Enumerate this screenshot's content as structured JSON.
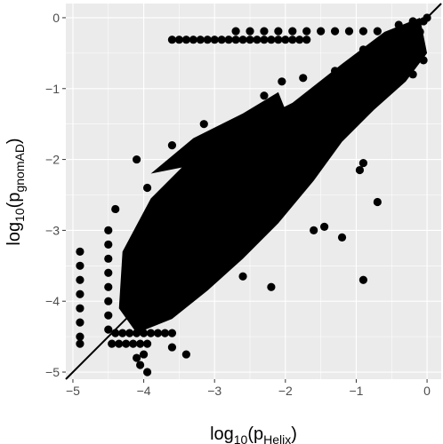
{
  "chart_data": {
    "type": "scatter",
    "title": "",
    "xlabel": {
      "base": "log",
      "base_sub": "10",
      "open": "(p",
      "sub": "Helix",
      "close": ")"
    },
    "ylabel": {
      "base": "log",
      "base_sub": "10",
      "open": "(p",
      "sub": "gnomAD",
      "close": ")"
    },
    "xlim": [
      -5.1,
      0.2
    ],
    "ylim": [
      -5.1,
      0.2
    ],
    "x_ticks": [
      -5,
      -4,
      -3,
      -2,
      -1,
      0
    ],
    "x_tick_labels": [
      "−5",
      "−4",
      "−3",
      "−2",
      "−1",
      "0"
    ],
    "y_ticks": [
      -5,
      -4,
      -3,
      -2,
      -1,
      0
    ],
    "y_tick_labels": [
      "−5",
      "−4",
      "−3",
      "−2",
      "−1",
      "0"
    ],
    "grid": true,
    "background": "#ebebeb",
    "point_color": "#000000",
    "reference_line": {
      "type": "identity",
      "slope": 1,
      "intercept": 0,
      "color": "#000000"
    },
    "series": [
      {
        "points": [
          [
            -4.9,
            -3.3
          ],
          [
            -4.9,
            -3.5
          ],
          [
            -4.9,
            -3.7
          ],
          [
            -4.9,
            -3.9
          ],
          [
            -4.9,
            -4.1
          ],
          [
            -4.9,
            -4.3
          ],
          [
            -4.9,
            -4.5
          ],
          [
            -4.9,
            -4.6
          ],
          [
            -4.5,
            -3.0
          ],
          [
            -4.5,
            -3.2
          ],
          [
            -4.5,
            -3.4
          ],
          [
            -4.5,
            -3.6
          ],
          [
            -4.5,
            -3.8
          ],
          [
            -4.5,
            -4.0
          ],
          [
            -4.5,
            -4.2
          ],
          [
            -4.5,
            -4.4
          ],
          [
            -4.45,
            -4.6
          ],
          [
            -4.35,
            -4.6
          ],
          [
            -4.25,
            -4.6
          ],
          [
            -4.15,
            -4.6
          ],
          [
            -4.05,
            -4.6
          ],
          [
            -3.95,
            -4.6
          ],
          [
            -4.4,
            -4.45
          ],
          [
            -4.3,
            -4.45
          ],
          [
            -4.2,
            -4.45
          ],
          [
            -4.1,
            -4.45
          ],
          [
            -4.0,
            -4.45
          ],
          [
            -3.9,
            -4.45
          ],
          [
            -3.8,
            -4.45
          ],
          [
            -3.7,
            -4.45
          ],
          [
            -3.6,
            -4.45
          ],
          [
            -4.1,
            -4.8
          ],
          [
            -4.05,
            -4.9
          ],
          [
            -3.95,
            -5.0
          ],
          [
            -4.0,
            -4.75
          ],
          [
            -3.6,
            -4.65
          ],
          [
            -3.4,
            -4.75
          ],
          [
            -4.1,
            -2.0
          ],
          [
            -3.6,
            -1.8
          ],
          [
            -4.4,
            -2.7
          ],
          [
            -3.95,
            -2.4
          ],
          [
            -3.15,
            -1.5
          ],
          [
            -2.3,
            -1.1
          ],
          [
            -2.05,
            -0.9
          ],
          [
            -1.75,
            -0.85
          ],
          [
            -1.3,
            -0.75
          ],
          [
            -0.9,
            -0.45
          ],
          [
            -0.7,
            -2.6
          ],
          [
            -1.45,
            -2.95
          ],
          [
            -1.6,
            -3.0
          ],
          [
            -1.2,
            -3.1
          ],
          [
            -0.9,
            -3.7
          ],
          [
            -2.2,
            -3.8
          ],
          [
            -2.6,
            -3.65
          ],
          [
            -0.9,
            -2.05
          ],
          [
            -0.95,
            -2.15
          ],
          [
            -3.6,
            -0.31
          ],
          [
            -3.5,
            -0.31
          ],
          [
            -3.4,
            -0.31
          ],
          [
            -3.3,
            -0.31
          ],
          [
            -3.2,
            -0.31
          ],
          [
            -3.1,
            -0.31
          ],
          [
            -3.0,
            -0.31
          ],
          [
            -2.9,
            -0.31
          ],
          [
            -2.8,
            -0.31
          ],
          [
            -2.7,
            -0.31
          ],
          [
            -2.6,
            -0.31
          ],
          [
            -2.5,
            -0.31
          ],
          [
            -2.4,
            -0.31
          ],
          [
            -2.3,
            -0.31
          ],
          [
            -2.2,
            -0.31
          ],
          [
            -2.1,
            -0.31
          ],
          [
            -2.0,
            -0.31
          ],
          [
            -1.9,
            -0.31
          ],
          [
            -1.8,
            -0.31
          ],
          [
            -1.7,
            -0.31
          ],
          [
            -2.7,
            -0.19
          ],
          [
            -2.5,
            -0.19
          ],
          [
            -2.3,
            -0.19
          ],
          [
            -2.1,
            -0.19
          ],
          [
            -1.9,
            -0.19
          ],
          [
            -1.7,
            -0.19
          ],
          [
            -1.5,
            -0.19
          ],
          [
            -1.3,
            -0.19
          ],
          [
            -1.1,
            -0.19
          ],
          [
            -0.9,
            -0.19
          ],
          [
            -0.7,
            -0.19
          ],
          [
            -0.4,
            -0.1
          ],
          [
            -0.3,
            -0.15
          ],
          [
            -0.2,
            -0.05
          ],
          [
            -0.1,
            -0.2
          ],
          [
            -0.05,
            -0.05
          ],
          [
            0.0,
            0.0
          ],
          [
            -0.15,
            -0.3
          ],
          [
            -0.1,
            -0.4
          ],
          [
            -0.05,
            -0.6
          ],
          [
            -0.3,
            -0.5
          ],
          [
            -0.5,
            -0.35
          ],
          [
            -0.6,
            -0.6
          ],
          [
            -0.2,
            -0.8
          ]
        ]
      }
    ]
  }
}
